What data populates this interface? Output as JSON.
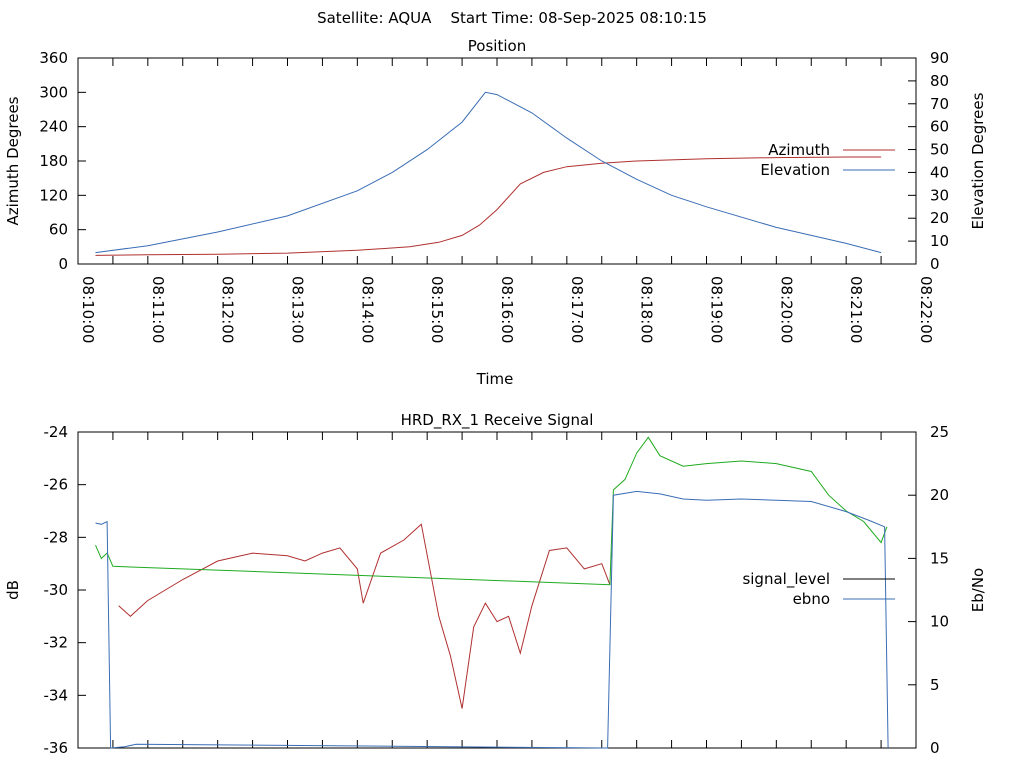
{
  "header": {
    "text": "Satellite: AQUA    Start Time: 08-Sep-2025 08:10:15"
  },
  "chart_data": [
    {
      "type": "line",
      "title": "Position",
      "xlabel": "Time",
      "ylabel": "Azimuth Degrees",
      "y2label": "Elevation Degrees",
      "x_ticks": [
        "08:10:00",
        "08:11:00",
        "08:12:00",
        "08:13:00",
        "08:14:00",
        "08:15:00",
        "08:16:00",
        "08:17:00",
        "08:18:00",
        "08:19:00",
        "08:20:00",
        "08:21:00",
        "08:22:00"
      ],
      "x_range": [
        "08:10:00",
        "08:22:00"
      ],
      "ylim": [
        0,
        360
      ],
      "y_ticks": [
        0,
        60,
        120,
        180,
        240,
        300,
        360
      ],
      "y2lim": [
        0,
        90
      ],
      "y2_ticks": [
        0,
        10,
        20,
        30,
        40,
        50,
        60,
        70,
        80,
        90
      ],
      "legend_position": "right",
      "series": [
        {
          "name": "Azimuth",
          "axis": "y",
          "color": "#b03030",
          "x": [
            "08:10:15",
            "08:11:00",
            "08:12:00",
            "08:13:00",
            "08:14:00",
            "08:14:45",
            "08:15:10",
            "08:15:30",
            "08:15:45",
            "08:16:00",
            "08:16:20",
            "08:16:40",
            "08:17:00",
            "08:17:30",
            "08:18:00",
            "08:19:00",
            "08:20:00",
            "08:21:00",
            "08:21:30"
          ],
          "y": [
            15,
            16,
            17,
            19,
            24,
            30,
            38,
            50,
            68,
            95,
            140,
            160,
            170,
            176,
            180,
            184,
            186,
            187,
            187
          ]
        },
        {
          "name": "Elevation",
          "axis": "y2",
          "color": "#3a6db5",
          "x": [
            "08:10:15",
            "08:11:00",
            "08:12:00",
            "08:13:00",
            "08:14:00",
            "08:14:30",
            "08:15:00",
            "08:15:30",
            "08:15:50",
            "08:16:00",
            "08:16:30",
            "08:17:00",
            "08:17:30",
            "08:18:00",
            "08:18:30",
            "08:19:00",
            "08:20:00",
            "08:21:00",
            "08:21:30"
          ],
          "y": [
            5,
            8,
            14,
            21,
            32,
            40,
            50,
            62,
            75,
            74,
            66,
            55,
            45,
            37,
            30,
            25,
            16,
            9,
            5
          ]
        }
      ]
    },
    {
      "type": "line",
      "title": "HRD_RX_1 Receive Signal",
      "xlabel": "",
      "ylabel": "dB",
      "y2label": "Eb/No",
      "x_range": [
        "08:10:00",
        "08:22:00"
      ],
      "ylim": [
        -36,
        -24
      ],
      "y_ticks": [
        -36,
        -34,
        -32,
        -30,
        -28,
        -26,
        -24
      ],
      "y2lim": [
        0,
        25
      ],
      "y2_ticks": [
        0,
        5,
        10,
        15,
        20,
        25
      ],
      "legend_position": "right",
      "legend": [
        {
          "name": "signal_level",
          "color": "#000000"
        },
        {
          "name": "ebno",
          "color": "#3a6db5"
        }
      ],
      "series": [
        {
          "name": "signal_level",
          "axis": "y",
          "segments": [
            {
              "color": "#b03030",
              "x": [
                "08:10:35",
                "08:10:45",
                "08:11:00",
                "08:11:30",
                "08:12:00",
                "08:12:30",
                "08:13:00",
                "08:13:15",
                "08:13:30",
                "08:13:45",
                "08:14:00",
                "08:14:05",
                "08:14:20",
                "08:14:40",
                "08:14:55",
                "08:15:10",
                "08:15:20",
                "08:15:30",
                "08:15:40",
                "08:15:50",
                "08:16:00",
                "08:16:10",
                "08:16:20",
                "08:16:30",
                "08:16:45",
                "08:17:00",
                "08:17:15",
                "08:17:30",
                "08:17:37"
              ],
              "y": [
                -30.6,
                -31,
                -30.4,
                -29.6,
                -28.9,
                -28.6,
                -28.7,
                -28.9,
                -28.6,
                -28.4,
                -29.2,
                -30.5,
                -28.6,
                -28.1,
                -27.5,
                -31.0,
                -32.5,
                -34.5,
                -31.4,
                -30.5,
                -31.2,
                -31.0,
                -32.4,
                -30.6,
                -28.5,
                -28.4,
                -29.2,
                -29.0,
                -29.8
              ]
            },
            {
              "color": "#1faa1f",
              "x": [
                "08:10:15",
                "08:10:20",
                "08:10:25",
                "08:10:30",
                "08:17:37",
                "08:17:40",
                "08:17:50",
                "08:18:00",
                "08:18:10",
                "08:18:20",
                "08:18:40",
                "08:19:00",
                "08:19:30",
                "08:20:00",
                "08:20:30",
                "08:20:45",
                "08:21:00",
                "08:21:15",
                "08:21:30",
                "08:21:35"
              ],
              "y": [
                -28.3,
                -28.8,
                -28.6,
                -29.1,
                -29.8,
                -26.2,
                -25.8,
                -24.8,
                -24.2,
                -24.9,
                -25.3,
                -25.2,
                -25.1,
                -25.2,
                -25.5,
                -26.4,
                -27.0,
                -27.4,
                -28.2,
                -27.6
              ]
            }
          ]
        },
        {
          "name": "ebno",
          "axis": "y2",
          "color": "#3a6db5",
          "x": [
            "08:10:15",
            "08:10:20",
            "08:10:25",
            "08:10:28",
            "08:10:40",
            "08:10:50",
            "08:17:35",
            "08:17:40",
            "08:18:00",
            "08:18:20",
            "08:18:40",
            "08:19:00",
            "08:19:30",
            "08:20:00",
            "08:20:30",
            "08:21:00",
            "08:21:20",
            "08:21:33",
            "08:21:36"
          ],
          "y": [
            17.8,
            17.7,
            17.9,
            0.0,
            0.1,
            0.3,
            0.0,
            20.0,
            20.3,
            20.1,
            19.7,
            19.6,
            19.7,
            19.6,
            19.5,
            18.7,
            18.0,
            17.5,
            0.0
          ]
        }
      ]
    }
  ]
}
